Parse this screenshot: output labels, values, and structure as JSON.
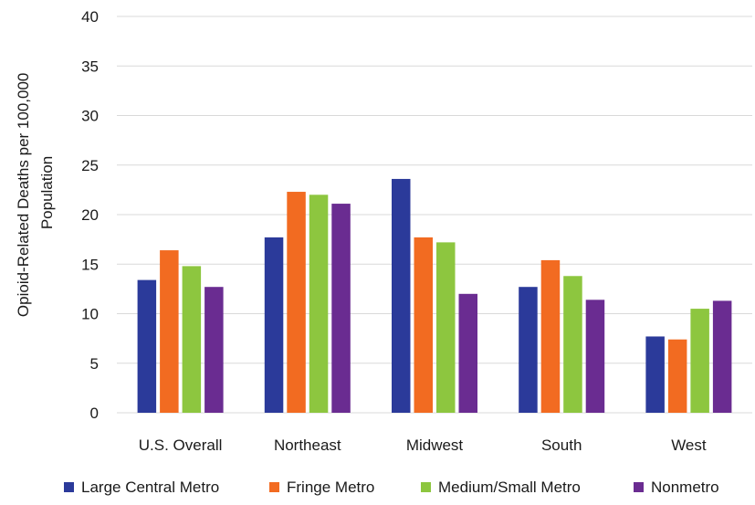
{
  "chart_data": {
    "type": "bar",
    "title": "",
    "xlabel": "",
    "ylabel_lines": [
      "Opioid-Related Deaths per 100,000",
      "Population"
    ],
    "categories": [
      "U.S. Overall",
      "Northeast",
      "Midwest",
      "South",
      "West"
    ],
    "ylim": [
      0,
      40
    ],
    "yticks": [
      0,
      5,
      10,
      15,
      20,
      25,
      30,
      35,
      40
    ],
    "grid": true,
    "legend_position": "bottom",
    "series": [
      {
        "name": "Large Central Metro",
        "color": "#2b3a9a",
        "values": [
          13.4,
          17.7,
          23.6,
          12.7,
          7.7
        ]
      },
      {
        "name": "Fringe Metro",
        "color": "#f26b21",
        "values": [
          16.4,
          22.3,
          17.7,
          15.4,
          7.4
        ]
      },
      {
        "name": "Medium/Small Metro",
        "color": "#8dc63f",
        "values": [
          14.8,
          22.0,
          17.2,
          13.8,
          10.5
        ]
      },
      {
        "name": "Nonmetro",
        "color": "#6a2c91",
        "values": [
          12.7,
          21.1,
          12.0,
          11.4,
          11.3
        ]
      }
    ]
  }
}
